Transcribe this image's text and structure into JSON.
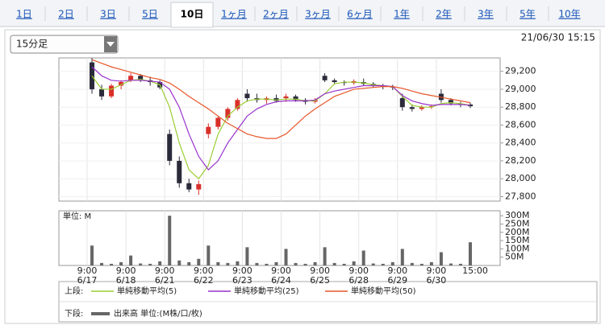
{
  "tabs": [
    {
      "label": "1日",
      "active": false
    },
    {
      "label": "2日",
      "active": false
    },
    {
      "label": "3日",
      "active": false
    },
    {
      "label": "5日",
      "active": false
    },
    {
      "label": "10日",
      "active": true
    },
    {
      "label": "1ヶ月",
      "active": false
    },
    {
      "label": "2ヶ月",
      "active": false
    },
    {
      "label": "3ヶ月",
      "active": false
    },
    {
      "label": "6ヶ月",
      "active": false
    },
    {
      "label": "1年",
      "active": false
    },
    {
      "label": "2年",
      "active": false
    },
    {
      "label": "3年",
      "active": false
    },
    {
      "label": "5年",
      "active": false
    },
    {
      "label": "10年",
      "active": false
    }
  ],
  "interval": "15分足",
  "timestamp": "21/06/30 15:15",
  "chart_data": [
    {
      "type": "candlestick",
      "up_color": "#d9302a",
      "down_color": "#2a2a3a",
      "open": [
        29300,
        29000,
        28920,
        29040,
        29100,
        29150,
        29100,
        29080,
        28500,
        28200,
        27950,
        27880,
        28500,
        28580,
        28680,
        28780,
        28950,
        28900,
        28880,
        28900,
        28900,
        28920,
        28880,
        28860,
        29150,
        29100,
        29080,
        29070,
        29080,
        29060,
        29040,
        29030,
        28900,
        28800,
        28780,
        28800,
        28950,
        28880,
        28840,
        28830
      ],
      "high": [
        29350,
        29050,
        29060,
        29100,
        29180,
        29170,
        29140,
        29100,
        28550,
        28250,
        28000,
        27980,
        28620,
        28700,
        28800,
        28900,
        29000,
        28950,
        28920,
        28940,
        28950,
        28940,
        28900,
        28900,
        29180,
        29120,
        29100,
        29110,
        29120,
        29080,
        29060,
        29050,
        28950,
        28830,
        28820,
        28830,
        29000,
        28900,
        28860,
        28850
      ],
      "low": [
        28950,
        28880,
        28900,
        29000,
        29080,
        29080,
        29040,
        29000,
        28150,
        27900,
        27850,
        27820,
        28450,
        28550,
        28650,
        28760,
        28860,
        28850,
        28840,
        28850,
        28860,
        28860,
        28830,
        28840,
        29080,
        29060,
        29040,
        29050,
        29040,
        29020,
        29000,
        28990,
        28760,
        28750,
        28760,
        28780,
        28850,
        28820,
        28800,
        28790
      ],
      "close": [
        29000,
        28920,
        29040,
        29080,
        29150,
        29100,
        29080,
        29020,
        28200,
        27950,
        27880,
        27940,
        28580,
        28680,
        28780,
        28880,
        28900,
        28880,
        28900,
        28870,
        28920,
        28880,
        28860,
        28880,
        29100,
        29080,
        29070,
        29090,
        29060,
        29040,
        29030,
        29020,
        28800,
        28780,
        28800,
        28810,
        28880,
        28840,
        28830,
        28810
      ],
      "series": [
        {
          "name": "単純移動平均(5)",
          "color": "#9acd32",
          "values": [
            29150,
            29000,
            29000,
            29050,
            29100,
            29110,
            29090,
            29050,
            28800,
            28400,
            28100,
            28000,
            28150,
            28500,
            28700,
            28800,
            28870,
            28890,
            28890,
            28880,
            28890,
            28890,
            28870,
            28870,
            28950,
            29060,
            29080,
            29080,
            29070,
            29050,
            29040,
            29030,
            28920,
            28820,
            28800,
            28800,
            28840,
            28850,
            28840,
            28820
          ]
        },
        {
          "name": "単純移動平均(25)",
          "color": "#9932cc",
          "values": [
            29250,
            29150,
            29100,
            29090,
            29100,
            29100,
            29090,
            29080,
            29000,
            28800,
            28500,
            28250,
            28100,
            28200,
            28400,
            28550,
            28700,
            28780,
            28830,
            28860,
            28870,
            28870,
            28870,
            28880,
            28950,
            28980,
            29000,
            29020,
            29040,
            29040,
            29040,
            29030,
            28930,
            28870,
            28840,
            28820,
            28830,
            28830,
            28830,
            28820
          ]
        },
        {
          "name": "単純移動平均(50)",
          "color": "#e8562a",
          "values": [
            29330,
            29290,
            29250,
            29220,
            29190,
            29160,
            29130,
            29110,
            29070,
            29000,
            28920,
            28850,
            28780,
            28700,
            28620,
            28560,
            28500,
            28470,
            28450,
            28450,
            28500,
            28600,
            28700,
            28780,
            28850,
            28920,
            28960,
            29000,
            29010,
            29020,
            29030,
            29030,
            29010,
            28980,
            28950,
            28930,
            28910,
            28890,
            28870,
            28850
          ]
        }
      ],
      "ylim": [
        27750,
        29350
      ],
      "yticks": [
        {
          "value": 27800,
          "label": "27,800"
        },
        {
          "value": 28000,
          "label": "28,000"
        },
        {
          "value": 28200,
          "label": "28,200"
        },
        {
          "value": 28400,
          "label": "28,400"
        },
        {
          "value": 28600,
          "label": "28,600"
        },
        {
          "value": 28800,
          "label": "28,800"
        },
        {
          "value": 29000,
          "label": "29,000"
        },
        {
          "value": 29200,
          "label": "29,200"
        }
      ],
      "legend_label": "上段:"
    },
    {
      "type": "bar",
      "unit_label": "単位: M",
      "categories": [
        "6/17",
        null,
        null,
        null,
        "6/18",
        null,
        null,
        null,
        "6/21",
        null,
        null,
        null,
        "6/22",
        null,
        null,
        null,
        "6/23",
        null,
        null,
        null,
        "6/24",
        null,
        null,
        null,
        "6/25",
        null,
        null,
        null,
        "6/28",
        null,
        null,
        null,
        "6/29",
        null,
        null,
        null,
        "6/30",
        null,
        null,
        null
      ],
      "session_open": "9:00",
      "session_close": "15:00",
      "series": [
        {
          "name": "出来高 単位:(M株/口/枚)",
          "color": "#666666",
          "values": [
            120,
            15,
            10,
            20,
            60,
            12,
            10,
            25,
            300,
            30,
            20,
            40,
            120,
            20,
            15,
            25,
            110,
            15,
            10,
            20,
            100,
            15,
            10,
            20,
            110,
            15,
            10,
            25,
            90,
            12,
            10,
            20,
            100,
            15,
            10,
            20,
            80,
            12,
            10,
            140
          ]
        }
      ],
      "ylim": [
        0,
        330
      ],
      "yticks": [
        {
          "value": 50,
          "label": "50M"
        },
        {
          "value": 100,
          "label": "100M"
        },
        {
          "value": 150,
          "label": "150M"
        },
        {
          "value": 200,
          "label": "200M"
        },
        {
          "value": 250,
          "label": "250M"
        },
        {
          "value": 300,
          "label": "300M"
        }
      ],
      "legend_label": "下段:"
    }
  ]
}
